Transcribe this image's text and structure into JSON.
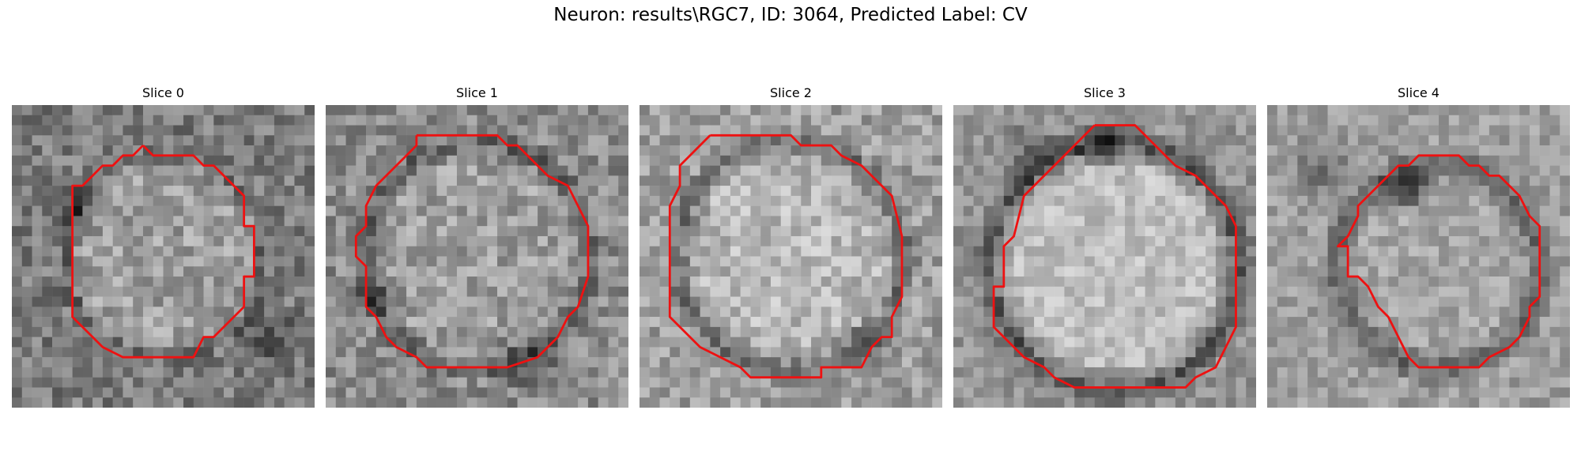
{
  "figure": {
    "title": "Neuron: results\\RGC7, ID: 3064, Predicted Label: CV"
  },
  "panels": [
    {
      "title": "Slice 0"
    },
    {
      "title": "Slice 1"
    },
    {
      "title": "Slice 2"
    },
    {
      "title": "Slice 3"
    },
    {
      "title": "Slice 4"
    }
  ],
  "colors": {
    "contour": "#ee1111",
    "colormap": "gray"
  }
}
